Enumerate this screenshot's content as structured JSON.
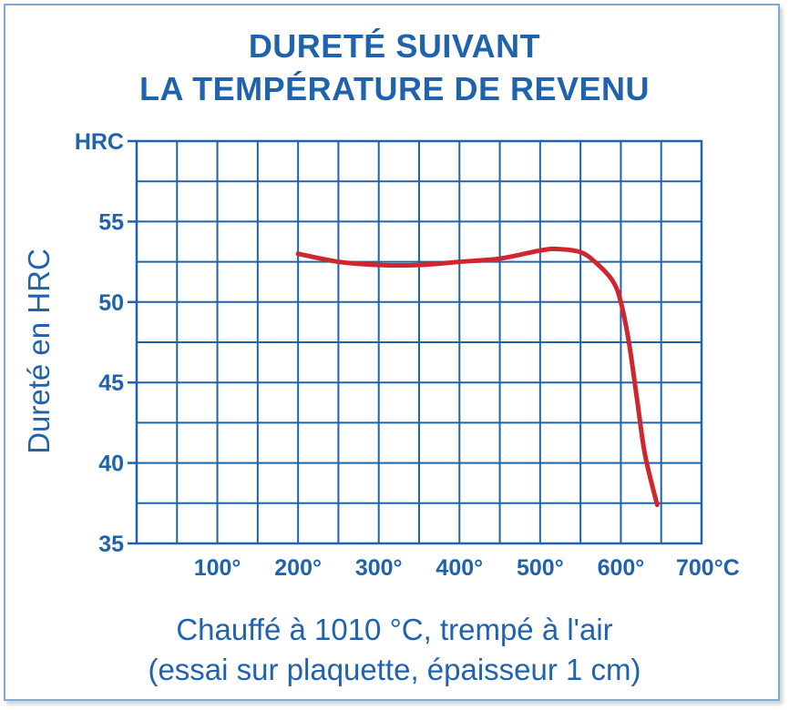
{
  "chart_data": {
    "type": "line",
    "title": [
      "DURETÉ SUIVANT",
      "LA TEMPÉRATURE DE REVENU"
    ],
    "ylabel": "Dureté en HRC",
    "y_unit_label": "HRC",
    "x_unit_label": "°C",
    "caption": [
      "Chauffé à 1010 °C, trempé à l'air",
      "(essai sur plaquette, épaisseur 1 cm)"
    ],
    "xlim": [
      0,
      700
    ],
    "ylim": [
      35,
      60
    ],
    "x_ticks": [
      {
        "value": 100,
        "label": "100°"
      },
      {
        "value": 200,
        "label": "200°"
      },
      {
        "value": 300,
        "label": "300°"
      },
      {
        "value": 400,
        "label": "400°"
      },
      {
        "value": 500,
        "label": "500°"
      },
      {
        "value": 600,
        "label": "600°"
      },
      {
        "value": 700,
        "label": "700°C"
      }
    ],
    "y_ticks": [
      {
        "value": 35,
        "label": "35"
      },
      {
        "value": 40,
        "label": "40"
      },
      {
        "value": 45,
        "label": "45"
      },
      {
        "value": 50,
        "label": "50"
      },
      {
        "value": 55,
        "label": "55"
      },
      {
        "value": 60,
        "label": "HRC"
      }
    ],
    "grid": true,
    "series": [
      {
        "color": "#d0262e",
        "x": [
          200,
          250,
          300,
          350,
          400,
          450,
          500,
          520,
          550,
          570,
          590,
          600,
          610,
          620,
          630,
          645
        ],
        "y": [
          53.0,
          52.5,
          52.3,
          52.3,
          52.5,
          52.7,
          53.2,
          53.3,
          53.1,
          52.4,
          51.3,
          50.0,
          47.5,
          44.0,
          40.5,
          37.4
        ]
      }
    ],
    "colors": {
      "axis": "#1f63ae",
      "line": "#d0262e"
    }
  }
}
